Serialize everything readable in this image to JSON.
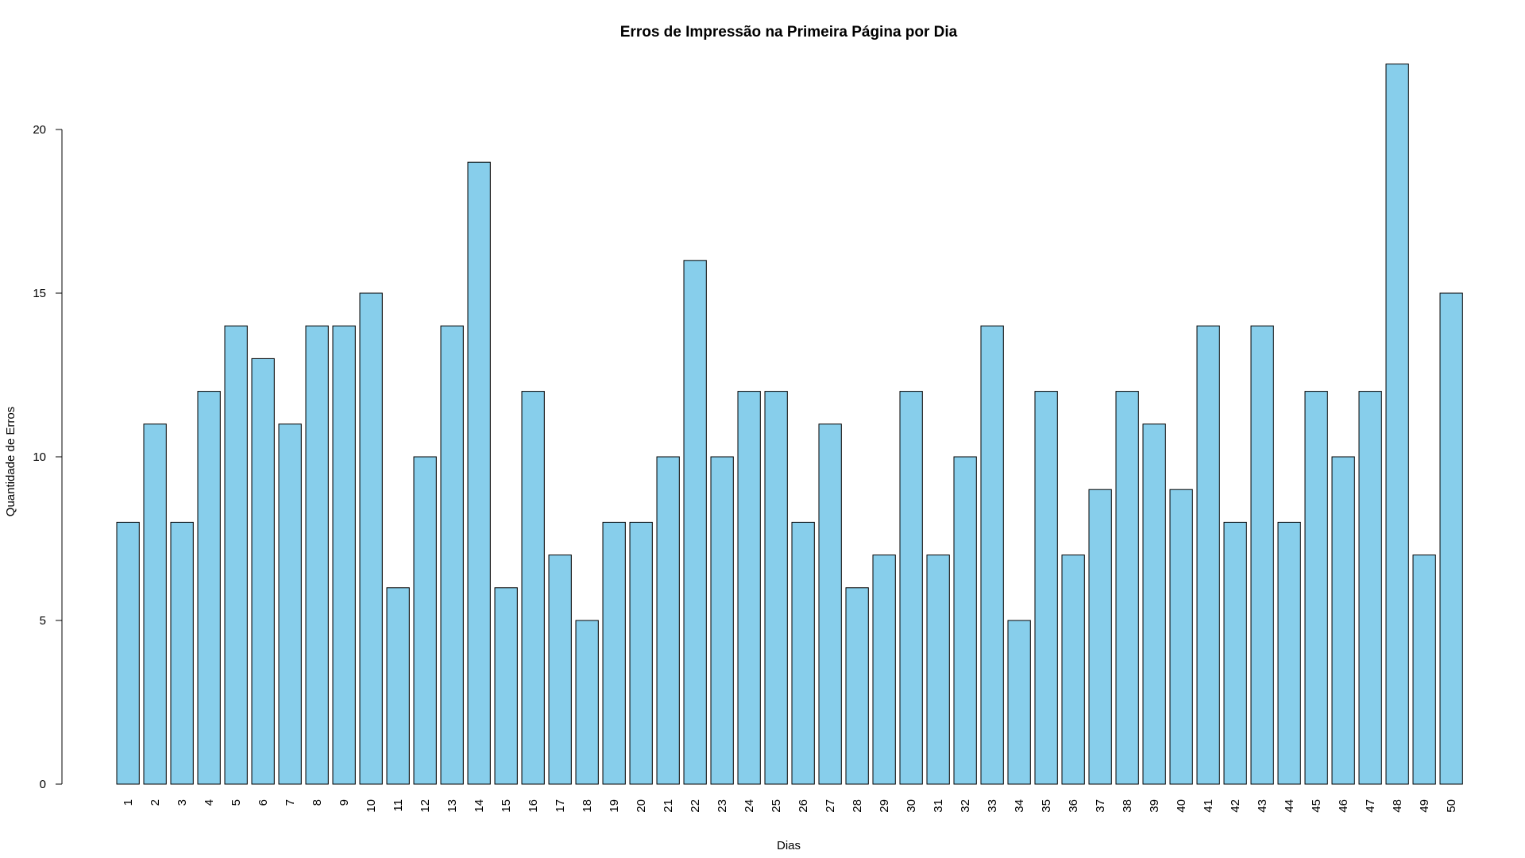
{
  "chart_data": {
    "type": "bar",
    "title": "Erros de Impressão na Primeira Página por Dia",
    "xlabel": "Dias",
    "ylabel": "Quantidade de Erros",
    "categories": [
      "1",
      "2",
      "3",
      "4",
      "5",
      "6",
      "7",
      "8",
      "9",
      "10",
      "11",
      "12",
      "13",
      "14",
      "15",
      "16",
      "17",
      "18",
      "19",
      "20",
      "21",
      "22",
      "23",
      "24",
      "25",
      "26",
      "27",
      "28",
      "29",
      "30",
      "31",
      "32",
      "33",
      "34",
      "35",
      "36",
      "37",
      "38",
      "39",
      "40",
      "41",
      "42",
      "43",
      "44",
      "45",
      "46",
      "47",
      "48",
      "49",
      "50"
    ],
    "values": [
      8,
      11,
      8,
      12,
      14,
      13,
      11,
      14,
      14,
      15,
      6,
      10,
      14,
      19,
      6,
      12,
      7,
      5,
      8,
      8,
      10,
      16,
      10,
      12,
      12,
      8,
      11,
      6,
      7,
      12,
      7,
      10,
      14,
      5,
      12,
      7,
      9,
      12,
      11,
      9,
      14,
      8,
      14,
      8,
      12,
      10,
      12,
      22,
      7,
      15
    ],
    "yticks": [
      0,
      5,
      10,
      15,
      20
    ],
    "ylim": [
      0,
      22
    ],
    "grid": false,
    "bar_color": "#87CEEB",
    "bar_border_color": "#000000"
  }
}
